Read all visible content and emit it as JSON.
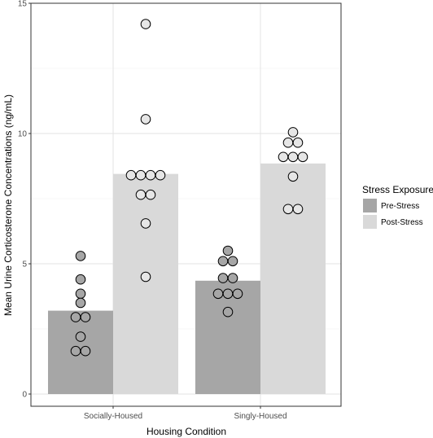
{
  "chart_data": {
    "type": "bar",
    "ylabel": "Mean Urine Corticosterone Concentrations (ng/mL)",
    "xlabel": "Housing Condition",
    "categories": [
      "Socially-Housed",
      "Singly-Housed"
    ],
    "ylim": [
      0,
      15
    ],
    "yticks": [
      0,
      5,
      10,
      15
    ],
    "grid": true,
    "legend": {
      "title": "Stress Exposure",
      "placement": "right"
    },
    "series": [
      {
        "name": "Pre-Stress",
        "color": "#a6a6a6",
        "point_color": "#a6a6a6",
        "values": [
          3.2,
          4.35
        ],
        "points": [
          [
            5.3,
            4.4,
            3.85,
            3.5,
            2.95,
            2.95,
            2.2,
            1.65,
            1.65
          ],
          [
            5.5,
            5.1,
            5.1,
            4.45,
            4.45,
            3.85,
            3.85,
            3.85,
            3.15
          ]
        ]
      },
      {
        "name": "Post-Stress",
        "color": "#d9d9d9",
        "point_color": "#e6e6e6",
        "values": [
          8.45,
          8.85
        ],
        "points": [
          [
            14.2,
            10.55,
            8.4,
            8.4,
            8.4,
            8.4,
            7.65,
            7.65,
            6.55,
            4.5
          ],
          [
            10.05,
            9.65,
            9.65,
            9.1,
            9.1,
            9.1,
            8.35,
            7.1,
            7.1
          ]
        ]
      }
    ]
  }
}
